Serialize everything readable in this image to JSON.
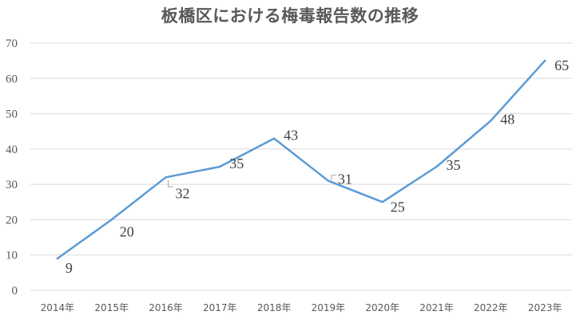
{
  "chart_data": {
    "type": "line",
    "title": "板橋区における梅毒報告数の推移",
    "categories": [
      "2014年",
      "2015年",
      "2016年",
      "2017年",
      "2018年",
      "2019年",
      "2020年",
      "2021年",
      "2022年",
      "2023年"
    ],
    "series": [
      {
        "values": [
          9,
          20,
          32,
          35,
          43,
          31,
          25,
          35,
          48,
          65
        ]
      }
    ],
    "ylim": [
      0,
      70
    ],
    "yticks": [
      0,
      10,
      20,
      30,
      40,
      50,
      60,
      70
    ],
    "grid": true,
    "legend": "none",
    "colors": {
      "line": "#5b9bd5",
      "grid": "#d9d9d9",
      "text": "#595959"
    }
  }
}
